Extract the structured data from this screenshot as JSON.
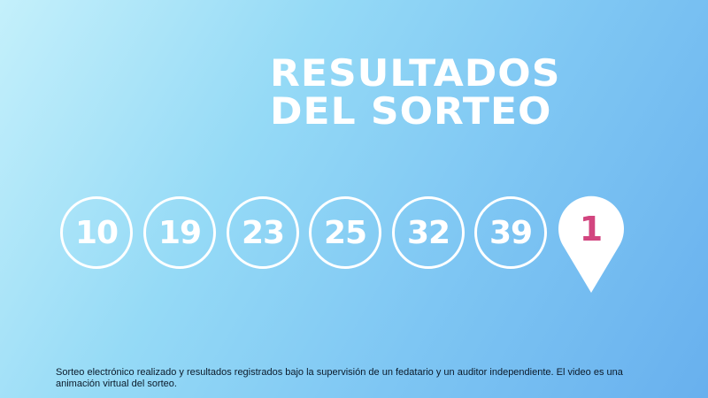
{
  "title": {
    "line1": "RESULTADOS",
    "line2": "DEL SORTEO"
  },
  "numbers": [
    "10",
    "19",
    "23",
    "25",
    "32",
    "39"
  ],
  "special_number": "1",
  "colors": {
    "special": "#d2457f",
    "background_start": "#c4f0fb",
    "background_end": "#68b0ee"
  },
  "disclaimer": "Sorteo electrónico realizado y resultados registrados bajo la supervisión de un fedatario y un auditor independiente. El video es una animación virtual del sorteo."
}
